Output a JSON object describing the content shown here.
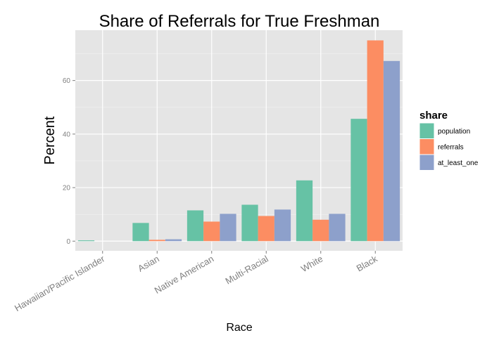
{
  "chart_data": {
    "type": "bar",
    "title": "Share of Referrals for True Freshman",
    "xlabel": "Race",
    "ylabel": "Percent",
    "categories": [
      "Hawaiian/Pacific Islander",
      "Asian",
      "Native American",
      "Multi-Racial",
      "White",
      "Black"
    ],
    "series": [
      {
        "name": "population",
        "color": "#66c2a5",
        "values": [
          0.3,
          6.8,
          11.5,
          13.6,
          22.7,
          45.7
        ]
      },
      {
        "name": "referrals",
        "color": "#fc8d62",
        "values": [
          0,
          0.5,
          7.3,
          9.4,
          8.0,
          75.0
        ]
      },
      {
        "name": "at_least_one",
        "color": "#8da0cb",
        "values": [
          0,
          0.7,
          10.2,
          11.8,
          10.2,
          67.3
        ]
      }
    ],
    "yticks": [
      0,
      20,
      40,
      60
    ],
    "ylim": [
      -3.6,
      78.8
    ],
    "grid": true,
    "legend": {
      "title": "share",
      "position": "right"
    }
  }
}
